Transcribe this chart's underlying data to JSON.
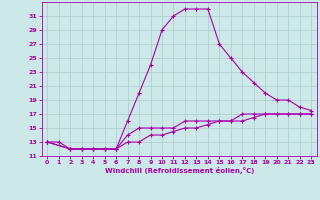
{
  "title": "",
  "xlabel": "Windchill (Refroidissement éolien,°C)",
  "background_color": "#cce8e8",
  "grid_color": "#aacccc",
  "line_color": "#aa00aa",
  "xlim": [
    -0.5,
    23.5
  ],
  "ylim": [
    11,
    33
  ],
  "xticks": [
    0,
    1,
    2,
    3,
    4,
    5,
    6,
    7,
    8,
    9,
    10,
    11,
    12,
    13,
    14,
    15,
    16,
    17,
    18,
    19,
    20,
    21,
    22,
    23
  ],
  "yticks": [
    11,
    13,
    15,
    17,
    19,
    21,
    23,
    25,
    27,
    29,
    31
  ],
  "line1_x": [
    0,
    1,
    2,
    3,
    4,
    5,
    6,
    7,
    8,
    9,
    10,
    11,
    12,
    13,
    14,
    15,
    16,
    17,
    18,
    19,
    20,
    21,
    22,
    23
  ],
  "line1_y": [
    13,
    13,
    12,
    12,
    12,
    12,
    12,
    16,
    20,
    24,
    29,
    31,
    32,
    32,
    32,
    27,
    25,
    23,
    21.5,
    20,
    19,
    19,
    18,
    17.5
  ],
  "line2_x": [
    0,
    2,
    3,
    4,
    5,
    6,
    7,
    8,
    9,
    10,
    11,
    12,
    13,
    14,
    15,
    16,
    17,
    18,
    19,
    20,
    21,
    22,
    23
  ],
  "line2_y": [
    13,
    12,
    12,
    12,
    12,
    12,
    14,
    15,
    15,
    15,
    15,
    16,
    16,
    16,
    16,
    16,
    17,
    17,
    17,
    17,
    17,
    17,
    17
  ],
  "line3_x": [
    0,
    2,
    3,
    4,
    5,
    6,
    7,
    8,
    9,
    10,
    11,
    12,
    13,
    14,
    15,
    16,
    17,
    18,
    19,
    20,
    21,
    22,
    23
  ],
  "line3_y": [
    13,
    12,
    12,
    12,
    12,
    12,
    13,
    13,
    14,
    14,
    14.5,
    15,
    15,
    15.5,
    16,
    16,
    16,
    16.5,
    17,
    17,
    17,
    17,
    17
  ]
}
